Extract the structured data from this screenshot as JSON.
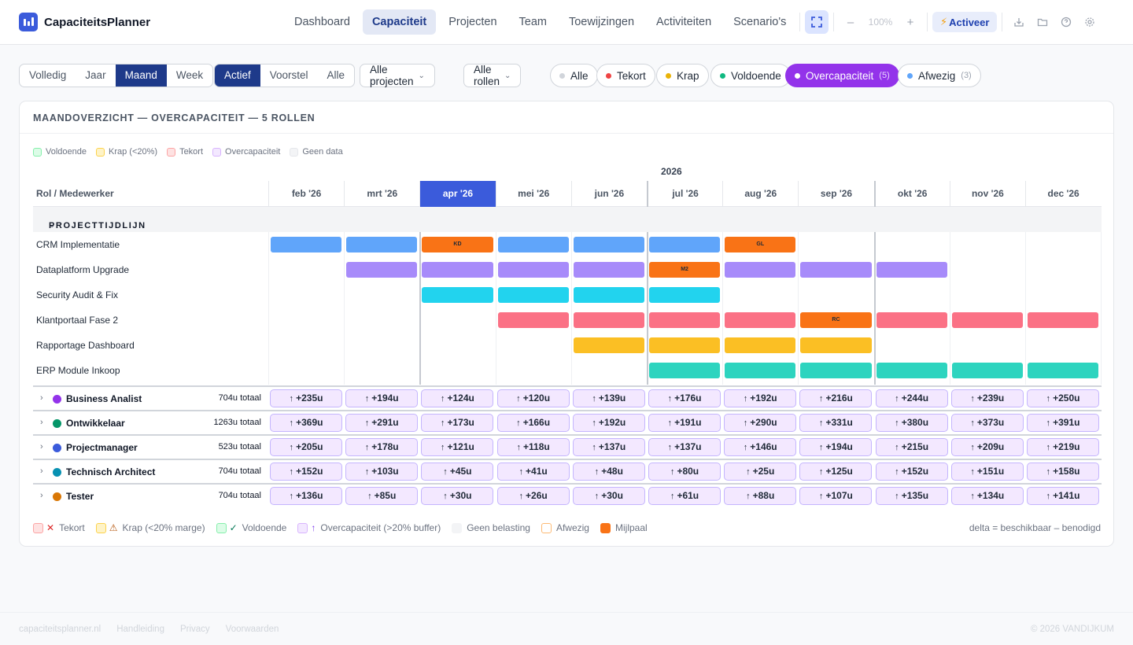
{
  "app": {
    "name": "CapaciteitsPlanner"
  },
  "nav": [
    "Dashboard",
    "Capaciteit",
    "Projecten",
    "Team",
    "Toewijzingen",
    "Activiteiten",
    "Scenario's"
  ],
  "nav_active": "Capaciteit",
  "toolbar": {
    "zoom": "100%",
    "activate_label": "Activeer",
    "minus": "–",
    "plus": "+"
  },
  "period_tabs": [
    "Volledig",
    "Jaar",
    "Maand",
    "Week"
  ],
  "period_active": "Maand",
  "status_tabs": [
    "Actief",
    "Voorstel",
    "Alle"
  ],
  "status_active": "Actief",
  "dropdowns": {
    "projects": "Alle projecten",
    "roles": "Alle rollen"
  },
  "capacity_filters": [
    {
      "label": "Alle",
      "color": "#d1d5db",
      "count": ""
    },
    {
      "label": "Tekort",
      "color": "#ef4444",
      "count": ""
    },
    {
      "label": "Krap",
      "color": "#eab308",
      "count": ""
    },
    {
      "label": "Voldoende",
      "color": "#10b981",
      "count": ""
    },
    {
      "label": "Overcapaciteit",
      "color": "#ffffff",
      "count": "(5)",
      "active": true
    },
    {
      "label": "Afwezig",
      "color": "#60a5fa",
      "count": "(3)"
    }
  ],
  "card": {
    "title": "MAANDOVERZICHT — OVERCAPACITEIT — 5 ROLLEN"
  },
  "legend_top": [
    {
      "label": "Voldoende",
      "bg": "#dcfce7",
      "border": "#86efac"
    },
    {
      "label": "Krap (<20%)",
      "bg": "#fef3c7",
      "border": "#fcd34d"
    },
    {
      "label": "Tekort",
      "bg": "#fee2e2",
      "border": "#fca5a5"
    },
    {
      "label": "Overcapaciteit",
      "bg": "#f3e8ff",
      "border": "#d8b4fe"
    },
    {
      "label": "Geen data",
      "bg": "#f3f4f6",
      "border": "#e5e7eb"
    }
  ],
  "grid": {
    "year": "2026",
    "row_header": "Rol / Medewerker",
    "months": [
      "feb '26",
      "mrt '26",
      "apr '26",
      "mei '26",
      "jun '26",
      "jul '26",
      "aug '26",
      "sep '26",
      "okt '26",
      "nov '26",
      "dec '26"
    ],
    "current_month": "apr '26",
    "section_label": "PROJECTTIJDLIJN"
  },
  "projects": [
    {
      "name": "CRM Implementatie",
      "color": "#60a5fa",
      "bars": [
        {
          "m": 0
        },
        {
          "m": 1
        },
        {
          "m": 2,
          "milestone": "KD"
        },
        {
          "m": 3
        },
        {
          "m": 4
        },
        {
          "m": 5
        },
        {
          "m": 6,
          "milestone": "GL"
        }
      ]
    },
    {
      "name": "Dataplatform Upgrade",
      "color": "#a78bfa",
      "bars": [
        {
          "m": 1
        },
        {
          "m": 2
        },
        {
          "m": 3
        },
        {
          "m": 4
        },
        {
          "m": 5,
          "milestone": "M2"
        },
        {
          "m": 6
        },
        {
          "m": 7
        },
        {
          "m": 8
        }
      ]
    },
    {
      "name": "Security Audit & Fix",
      "color": "#22d3ee",
      "bars": [
        {
          "m": 2
        },
        {
          "m": 3
        },
        {
          "m": 4
        },
        {
          "m": 5
        }
      ]
    },
    {
      "name": "Klantportaal Fase 2",
      "color": "#fb7185",
      "bars": [
        {
          "m": 3
        },
        {
          "m": 4
        },
        {
          "m": 5
        },
        {
          "m": 6
        },
        {
          "m": 7,
          "milestone": "RC"
        },
        {
          "m": 8
        },
        {
          "m": 9
        },
        {
          "m": 10
        }
      ]
    },
    {
      "name": "Rapportage Dashboard",
      "color": "#fbbf24",
      "bars": [
        {
          "m": 4
        },
        {
          "m": 5
        },
        {
          "m": 6
        },
        {
          "m": 7
        }
      ]
    },
    {
      "name": "ERP Module Inkoop",
      "color": "#2dd4bf",
      "bars": [
        {
          "m": 5
        },
        {
          "m": 6
        },
        {
          "m": 7
        },
        {
          "m": 8
        },
        {
          "m": 9
        },
        {
          "m": 10
        }
      ]
    }
  ],
  "roles": [
    {
      "name": "Business Analist",
      "color": "#9333ea",
      "total": "704u totaal",
      "values": [
        "+235u",
        "+194u",
        "+124u",
        "+120u",
        "+139u",
        "+176u",
        "+192u",
        "+216u",
        "+244u",
        "+239u",
        "+250u"
      ]
    },
    {
      "name": "Ontwikkelaar",
      "color": "#059669",
      "total": "1263u totaal",
      "values": [
        "+369u",
        "+291u",
        "+173u",
        "+166u",
        "+192u",
        "+191u",
        "+290u",
        "+331u",
        "+380u",
        "+373u",
        "+391u"
      ]
    },
    {
      "name": "Projectmanager",
      "color": "#3b5bdb",
      "total": "523u totaal",
      "values": [
        "+205u",
        "+178u",
        "+121u",
        "+118u",
        "+137u",
        "+137u",
        "+146u",
        "+194u",
        "+215u",
        "+209u",
        "+219u"
      ]
    },
    {
      "name": "Technisch Architect",
      "color": "#0891b2",
      "total": "704u totaal",
      "values": [
        "+152u",
        "+103u",
        "+45u",
        "+41u",
        "+48u",
        "+80u",
        "+25u",
        "+125u",
        "+152u",
        "+151u",
        "+158u"
      ]
    },
    {
      "name": "Tester",
      "color": "#d97706",
      "total": "704u totaal",
      "values": [
        "+136u",
        "+85u",
        "+30u",
        "+26u",
        "+30u",
        "+61u",
        "+88u",
        "+107u",
        "+135u",
        "+134u",
        "+141u"
      ]
    }
  ],
  "legend_bottom": [
    {
      "label": "Tekort",
      "icon": "✕",
      "icon_color": "#dc2626",
      "bg": "#fee2e2",
      "border": "#fca5a5"
    },
    {
      "label": "Krap (<20% marge)",
      "icon": "⚠",
      "icon_color": "#b45309",
      "bg": "#fef3c7",
      "border": "#fcd34d"
    },
    {
      "label": "Voldoende",
      "icon": "✓",
      "icon_color": "#047857",
      "bg": "#dcfce7",
      "border": "#86efac"
    },
    {
      "label": "Overcapaciteit (>20% buffer)",
      "icon": "↑",
      "icon_color": "#7c3aed",
      "bg": "#f3e8ff",
      "border": "#d8b4fe"
    },
    {
      "label": "Geen belasting",
      "icon": "",
      "icon_color": "",
      "bg": "#f3f4f6",
      "border": "#f3f4f6"
    },
    {
      "label": "Afwezig",
      "icon": "",
      "icon_color": "",
      "bg": "#ffffff",
      "border": "#fdba74"
    },
    {
      "label": "Mijlpaal",
      "icon": "",
      "icon_color": "",
      "bg": "#f97316",
      "border": "#f97316"
    }
  ],
  "delta_note": "delta = beschikbaar – benodigd",
  "footer": {
    "links": [
      "capaciteitsplanner.nl",
      "Handleiding",
      "Privacy",
      "Voorwaarden"
    ],
    "copyright": "© 2026 VANDIJKUM"
  }
}
